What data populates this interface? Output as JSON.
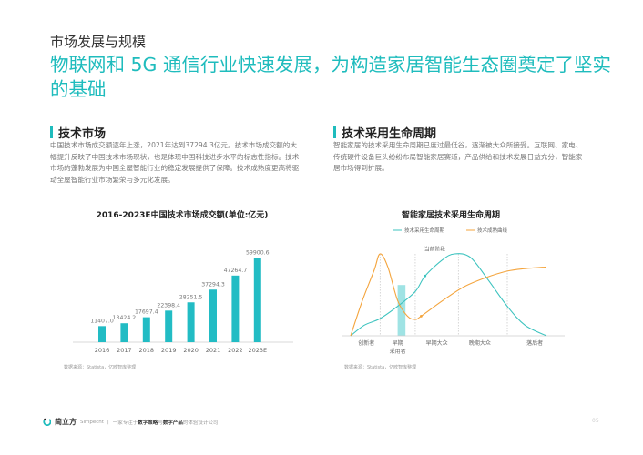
{
  "header": {
    "kicker": "市场发展与规模",
    "headline": "物联网和 5G 通信行业快速发展，为构造家居智能生态圈奠定了坚实的基础"
  },
  "left": {
    "title": "技术市场",
    "paragraph": "中国技术市场成交额逐年上涨，2021年达到37294.3亿元。技术市场成交额的大幅提升反映了中国技术市场现状，也是体现中国科技进步水平的标志性指标。技术市场的蓬勃发展为中国全屋智能行业的稳定发展提供了保障。技术成熟度更高将驱动全屋智能行业市场繁荣与多元化发展。",
    "source": "数据来源：Statista，亿欧智库整理"
  },
  "right": {
    "title": "技术采用生命周期",
    "paragraph": "智能家居的技术采用生命周期已度过最低谷，逐渐被大众所接受。互联网、家电、传统硬件设备巨头纷纷布局智能家居赛道，产品供给和技术发展日益充分，智能家居市场得到扩展。",
    "source": "数据来源：Statista，亿欧智库整理"
  },
  "chart_data": [
    {
      "type": "bar",
      "title": "2016-2023E中国技术市场成交额(单位:亿元)",
      "categories": [
        "2016",
        "2017",
        "2018",
        "2019",
        "2020",
        "2021",
        "2022",
        "2023E"
      ],
      "values": [
        11407.0,
        13424.2,
        17697.4,
        22398.4,
        28251.5,
        37294.3,
        47264.7,
        59900.6
      ],
      "value_labels": [
        "11407.0",
        "13424.2",
        "17697.4",
        "22398.4",
        "28251.5",
        "37294.3",
        "47264.7",
        "59900.6"
      ],
      "ylim": [
        0,
        62000
      ],
      "color": "#22bcc4",
      "grid": false
    },
    {
      "type": "line",
      "title": "智能家居技术采用生命周期",
      "legend_position": "top",
      "xlim": [
        0,
        100
      ],
      "ylim": [
        0,
        100
      ],
      "series": [
        {
          "name": "技术采用生命周期",
          "color": "#3cc3bf",
          "x": [
            0,
            7,
            15,
            24,
            33,
            38,
            47,
            53,
            61,
            70,
            80,
            89,
            100
          ],
          "y": [
            0,
            13,
            21,
            36,
            54,
            73,
            93,
            100,
            96,
            69,
            36,
            13,
            0
          ]
        },
        {
          "name": "技术成熟曲线",
          "color": "#f4a43c",
          "x": [
            0,
            6,
            12,
            15,
            19,
            24,
            29,
            33,
            36,
            47,
            58,
            69,
            80,
            89,
            100
          ],
          "y": [
            0,
            43,
            80,
            100,
            84,
            43,
            24,
            20,
            24,
            43,
            60,
            71,
            79,
            82,
            84
          ]
        }
      ],
      "stage_dividers": [
        15,
        33,
        55,
        80
      ],
      "stages": [
        {
          "label": "创新者",
          "x": 8
        },
        {
          "label": "早期",
          "label2": "采用者",
          "x": 24
        },
        {
          "label": "早期大众",
          "x": 44
        },
        {
          "label": "晚期大众",
          "x": 66
        },
        {
          "label": "落后者",
          "x": 94
        }
      ],
      "highlight_band": {
        "x": [
          24,
          28
        ],
        "y": 62,
        "color": "#9fe3e4"
      },
      "annotation": {
        "text": "当前阶段",
        "x": 43,
        "y": 104
      },
      "markers": [
        {
          "series": 0,
          "x": 38,
          "y": 73
        },
        {
          "series": 1,
          "x": 36,
          "y": 24
        }
      ]
    }
  ],
  "footer": {
    "logo": "简立方",
    "brand_en": "Simpecht",
    "sep": "|",
    "tagline_1": "一家专注于",
    "tagline_b1": "数字策略",
    "tagline_2": "与",
    "tagline_b2": "数字产品",
    "tagline_3": "的体验设计公司",
    "page": "05"
  }
}
